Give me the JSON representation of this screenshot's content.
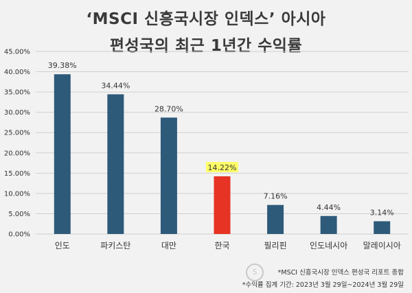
{
  "title_line1": "‘MSCI 신흥국시장 인덱스’ 아시아",
  "title_line2": "편성국의 최근 1년간 수익률",
  "notes": [
    "*MSCI 신흥국시장 인덱스 편성국 리포트 종합",
    "*수익률 집계 기간: 2023년 3월 29일~2024년 3월 29일"
  ],
  "colors": {
    "bar": "#2e5a7a",
    "highlight_bar": "#e63323",
    "highlight_label_bg": "#ffff66",
    "grid": "#cfcfcf",
    "background": "#f2f2f2"
  },
  "chart_data": {
    "type": "bar",
    "categories": [
      "인도",
      "파키스탄",
      "대만",
      "한국",
      "필리핀",
      "인도네시아",
      "말레이시아"
    ],
    "values": [
      39.38,
      34.44,
      28.7,
      14.22,
      7.16,
      4.44,
      3.14
    ],
    "value_labels": [
      "39.38%",
      "34.44%",
      "28.70%",
      "14.22%",
      "7.16%",
      "4.44%",
      "3.14%"
    ],
    "highlight_index": 3,
    "ylim": [
      0,
      45
    ],
    "yticks": [
      0,
      5,
      10,
      15,
      20,
      25,
      30,
      35,
      40,
      45
    ],
    "ytick_labels": [
      "0.00%",
      "5.00%",
      "10.00%",
      "15.00%",
      "20.00%",
      "25.00%",
      "30.00%",
      "35.00%",
      "40.00%",
      "45.00%"
    ],
    "grid": true,
    "title": "‘MSCI 신흥국시장 인덱스’ 아시아 편성국의 최근 1년간 수익률"
  }
}
